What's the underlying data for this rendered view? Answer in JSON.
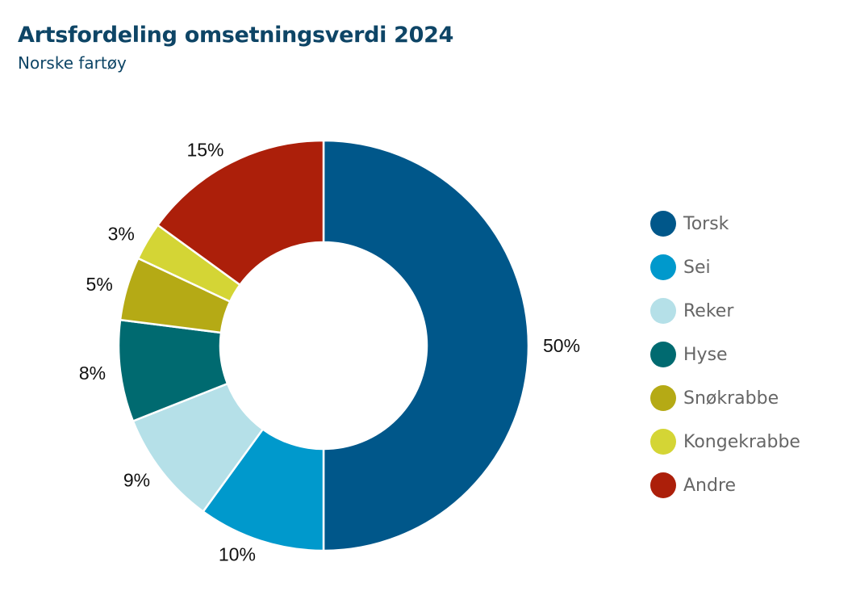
{
  "chart_data": {
    "type": "pie",
    "variant": "donut",
    "title": "Artsfordeling omsetningsverdi 2024",
    "subtitle": "Norske fartøy",
    "categories": [
      "Torsk",
      "Sei",
      "Reker",
      "Hyse",
      "Snøkrabbe",
      "Kongekrabbe",
      "Andre"
    ],
    "values": [
      50,
      10,
      9,
      8,
      5,
      3,
      15
    ],
    "labels": [
      "50%",
      "10%",
      "9%",
      "8%",
      "5%",
      "3%",
      "15%"
    ],
    "colors": [
      "#00578a",
      "#0099cc",
      "#b5e0e8",
      "#006a70",
      "#b5aa15",
      "#d4d535",
      "#ac1f0a"
    ],
    "legend_position": "right"
  }
}
